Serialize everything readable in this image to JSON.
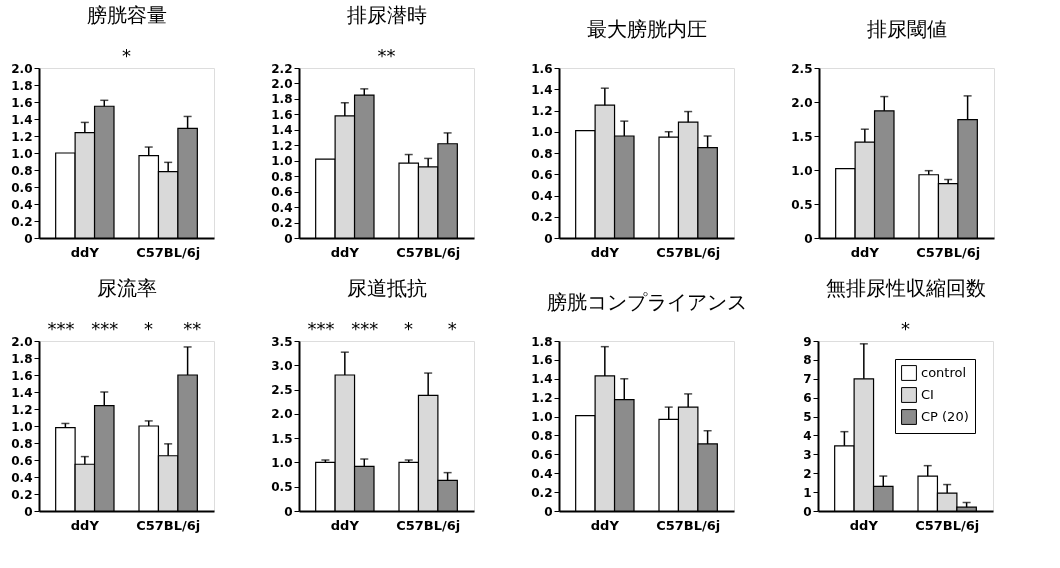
{
  "chart_data": [
    {
      "type": "bar",
      "title": "膀胱容量",
      "categories": [
        "ddY",
        "C57BL/6j"
      ],
      "ylim": [
        0,
        2.0
      ],
      "yticks": [
        0,
        0.2,
        0.4,
        0.6,
        0.8,
        {
          "value": 1,
          "label": "1.0"
        },
        1.2,
        1.4,
        1.6,
        1.8,
        {
          "value": 2,
          "label": "2.0"
        }
      ],
      "series": [
        {
          "color": "#ffffff",
          "values": [
            1.0,
            0.97
          ],
          "errors": [
            null,
            [
              0.97,
              1.07
            ]
          ]
        },
        {
          "color": "#d9d9d9",
          "values": [
            1.24,
            0.78
          ],
          "errors": [
            [
              1.24,
              1.36
            ],
            [
              0.78,
              0.89
            ]
          ]
        },
        {
          "color": "#8c8c8c",
          "values": [
            1.55,
            1.29
          ],
          "errors": [
            [
              1.55,
              1.62
            ],
            [
              1.29,
              1.43
            ]
          ]
        }
      ],
      "annotations": [
        "*"
      ]
    },
    {
      "type": "bar",
      "title": "排尿潜時",
      "categories": [
        "ddY",
        "C57BL/6j"
      ],
      "ylim": [
        0,
        2.2
      ],
      "yticks": [
        0,
        0.2,
        0.4,
        0.6,
        0.8,
        {
          "value": 1,
          "label": "1.0"
        },
        1.2,
        1.4,
        1.6,
        1.8,
        {
          "value": 2,
          "label": "2.0"
        },
        2.2
      ],
      "series": [
        {
          "color": "#ffffff",
          "values": [
            1.02,
            0.97
          ],
          "errors": [
            null,
            [
              0.97,
              1.08
            ]
          ]
        },
        {
          "color": "#d9d9d9",
          "values": [
            1.58,
            0.92
          ],
          "errors": [
            [
              1.58,
              1.75
            ],
            [
              0.92,
              1.03
            ]
          ]
        },
        {
          "color": "#8c8c8c",
          "values": [
            1.85,
            1.22
          ],
          "errors": [
            [
              1.85,
              1.93
            ],
            [
              1.22,
              1.36
            ]
          ]
        }
      ],
      "annotations": [
        "**"
      ]
    },
    {
      "type": "bar",
      "title": "最大膀胱内圧",
      "categories": [
        "ddY",
        "C57BL/6j"
      ],
      "ylim": [
        0,
        1.6
      ],
      "yticks": [
        0,
        0.2,
        0.4,
        0.6,
        0.8,
        {
          "value": 1,
          "label": "1.0"
        },
        1.2,
        1.4,
        1.6
      ],
      "series": [
        {
          "color": "#ffffff",
          "values": [
            1.01,
            0.95
          ],
          "errors": [
            null,
            [
              0.95,
              1.0
            ]
          ]
        },
        {
          "color": "#d9d9d9",
          "values": [
            1.25,
            1.09
          ],
          "errors": [
            [
              1.25,
              1.41
            ],
            [
              1.09,
              1.19
            ]
          ]
        },
        {
          "color": "#8c8c8c",
          "values": [
            0.96,
            0.85
          ],
          "errors": [
            [
              0.96,
              1.1
            ],
            [
              0.85,
              0.96
            ]
          ]
        }
      ]
    },
    {
      "type": "bar",
      "title": "排尿閾値",
      "categories": [
        "ddY",
        "C57BL/6j"
      ],
      "ylim": [
        0,
        2.5
      ],
      "yticks": [
        0,
        0.5,
        {
          "value": 1,
          "label": "1.0"
        },
        1.5,
        {
          "value": 2,
          "label": "2.0"
        },
        2.5
      ],
      "series": [
        {
          "color": "#ffffff",
          "values": [
            1.02,
            0.93
          ],
          "errors": [
            null,
            [
              0.93,
              0.99
            ]
          ]
        },
        {
          "color": "#d9d9d9",
          "values": [
            1.41,
            0.8
          ],
          "errors": [
            [
              1.41,
              1.6
            ],
            [
              0.8,
              0.86
            ]
          ]
        },
        {
          "color": "#8c8c8c",
          "values": [
            1.87,
            1.74
          ],
          "errors": [
            [
              1.87,
              2.08
            ],
            [
              1.74,
              2.09
            ]
          ]
        }
      ]
    },
    {
      "type": "bar",
      "title": "尿流率",
      "categories": [
        "ddY",
        "C57BL/6j"
      ],
      "ylim": [
        0,
        2.0
      ],
      "yticks": [
        0,
        0.2,
        0.4,
        0.6,
        0.8,
        {
          "value": 1,
          "label": "1.0"
        },
        1.2,
        1.4,
        1.6,
        1.8,
        {
          "value": 2,
          "label": "2.0"
        }
      ],
      "series": [
        {
          "color": "#ffffff",
          "values": [
            0.98,
            1.0
          ],
          "errors": [
            [
              0.98,
              1.03
            ],
            [
              1.0,
              1.06
            ]
          ]
        },
        {
          "color": "#d9d9d9",
          "values": [
            0.55,
            0.65
          ],
          "errors": [
            [
              0.55,
              0.64
            ],
            [
              0.65,
              0.79
            ]
          ]
        },
        {
          "color": "#8c8c8c",
          "values": [
            1.24,
            1.6
          ],
          "errors": [
            [
              1.24,
              1.4
            ],
            [
              1.6,
              1.93
            ]
          ]
        }
      ],
      "annotations": [
        "***",
        "***",
        "*",
        "**"
      ]
    },
    {
      "type": "bar",
      "title": "尿道抵抗",
      "categories": [
        "ddY",
        "C57BL/6j"
      ],
      "ylim": [
        0,
        3.5
      ],
      "yticks": [
        0,
        0.5,
        {
          "value": 1,
          "label": "1.0"
        },
        1.5,
        {
          "value": 2,
          "label": "2.0"
        },
        2.5,
        {
          "value": 3,
          "label": "3.0"
        },
        3.5
      ],
      "series": [
        {
          "color": "#ffffff",
          "values": [
            1.0,
            1.0
          ],
          "errors": [
            [
              1.0,
              1.05
            ],
            [
              1.0,
              1.05
            ]
          ]
        },
        {
          "color": "#d9d9d9",
          "values": [
            2.8,
            2.38
          ],
          "errors": [
            [
              2.8,
              3.27
            ],
            [
              2.38,
              2.84
            ]
          ]
        },
        {
          "color": "#8c8c8c",
          "values": [
            0.92,
            0.63
          ],
          "errors": [
            [
              0.92,
              1.07
            ],
            [
              0.63,
              0.79
            ]
          ]
        }
      ],
      "annotations": [
        "***",
        "***",
        "*",
        "*"
      ]
    },
    {
      "type": "bar",
      "title": "膀胱コンプライアンス",
      "categories": [
        "ddY",
        "C57BL/6j"
      ],
      "ylim": [
        0,
        1.8
      ],
      "yticks": [
        0,
        0.2,
        0.4,
        0.6,
        0.8,
        {
          "value": 1,
          "label": "1.0"
        },
        1.2,
        1.4,
        1.6,
        1.8
      ],
      "series": [
        {
          "color": "#ffffff",
          "values": [
            1.01,
            0.97
          ],
          "errors": [
            null,
            [
              0.97,
              1.1
            ]
          ]
        },
        {
          "color": "#d9d9d9",
          "values": [
            1.43,
            1.1
          ],
          "errors": [
            [
              1.43,
              1.74
            ],
            [
              1.1,
              1.24
            ]
          ]
        },
        {
          "color": "#8c8c8c",
          "values": [
            1.18,
            0.71
          ],
          "errors": [
            [
              1.18,
              1.4
            ],
            [
              0.71,
              0.85
            ]
          ]
        }
      ]
    },
    {
      "type": "bar",
      "title": "無排尿性収縮回数",
      "categories": [
        "ddY",
        "C57BL/6j"
      ],
      "ylim": [
        0,
        9
      ],
      "yticks": [
        0,
        1,
        2,
        3,
        4,
        5,
        6,
        7,
        8,
        9
      ],
      "legend": "top right",
      "series": [
        {
          "name": "control",
          "color": "#ffffff",
          "values": [
            3.45,
            1.85
          ],
          "errors": [
            [
              3.45,
              4.2
            ],
            [
              1.85,
              2.4
            ]
          ]
        },
        {
          "name": "CI",
          "color": "#d9d9d9",
          "values": [
            7.0,
            0.95
          ],
          "errors": [
            [
              7.0,
              8.85
            ],
            [
              0.95,
              1.4
            ]
          ]
        },
        {
          "name": "CP (20)",
          "color": "#8c8c8c",
          "values": [
            1.3,
            0.2
          ],
          "errors": [
            [
              1.3,
              1.85
            ],
            [
              0.2,
              0.45
            ]
          ]
        }
      ],
      "annotations": [
        "*"
      ]
    }
  ]
}
